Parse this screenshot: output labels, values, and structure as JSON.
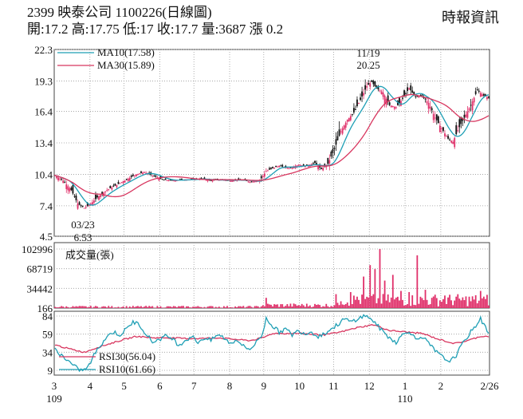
{
  "header": {
    "title": "2399  映泰公司 1100226(日線圖)",
    "quote": "開:17.2 高:17.75 低:17 收:17.7 量:3687 漲 0.2",
    "source": "時報資訊"
  },
  "colors": {
    "up": "#e0306a",
    "down": "#111111",
    "ma10": "#1f9fb5",
    "ma30": "#d8365f",
    "grid": "#9a9a9a"
  },
  "chart_data": [
    {
      "type": "candlestick",
      "x_axis_labels": [
        "3",
        "4",
        "5",
        "6",
        "7",
        "8",
        "9",
        "10",
        "11",
        "12",
        "1",
        "2",
        "2/26"
      ],
      "x_axis_year_labels": [
        "109",
        "110"
      ],
      "y_ticks": [
        22.3,
        19.3,
        16.4,
        13.4,
        10.4,
        7.4,
        4.5
      ],
      "ylim": [
        4.5,
        22.3
      ],
      "legend": [
        {
          "name": "MA10(17.58)",
          "color": "#1f9fb5"
        },
        {
          "name": "MA30(15.89)",
          "color": "#d8365f"
        }
      ],
      "annotations": [
        {
          "label_date": "11/19",
          "label_value": "20.25",
          "kind": "high"
        },
        {
          "label_date": "03/23",
          "label_value": "6.53",
          "kind": "low"
        }
      ],
      "close_keypoints": [
        [
          0,
          10.3
        ],
        [
          5,
          9.8
        ],
        [
          10,
          8.9
        ],
        [
          14,
          7.6
        ],
        [
          18,
          7.2
        ],
        [
          22,
          7.6
        ],
        [
          26,
          8.2
        ],
        [
          32,
          8.9
        ],
        [
          38,
          9.4
        ],
        [
          44,
          9.9
        ],
        [
          50,
          10.4
        ],
        [
          55,
          10.6
        ],
        [
          60,
          10.3
        ],
        [
          66,
          9.9
        ],
        [
          72,
          9.8
        ],
        [
          78,
          9.9
        ],
        [
          84,
          9.9
        ],
        [
          90,
          10.0
        ],
        [
          96,
          9.8
        ],
        [
          102,
          9.9
        ],
        [
          108,
          9.8
        ],
        [
          114,
          9.9
        ],
        [
          120,
          9.7
        ],
        [
          126,
          9.8
        ],
        [
          130,
          10.7
        ],
        [
          134,
          11.0
        ],
        [
          138,
          11.2
        ],
        [
          144,
          11.0
        ],
        [
          150,
          11.3
        ],
        [
          155,
          11.2
        ],
        [
          160,
          11.5
        ],
        [
          164,
          10.9
        ],
        [
          168,
          11.4
        ],
        [
          172,
          12.8
        ],
        [
          176,
          14.5
        ],
        [
          180,
          15.6
        ],
        [
          184,
          16.3
        ],
        [
          188,
          17.5
        ],
        [
          192,
          18.8
        ],
        [
          195,
          19.2
        ],
        [
          198,
          18.6
        ],
        [
          202,
          18.2
        ],
        [
          206,
          17.0
        ],
        [
          210,
          16.8
        ],
        [
          214,
          17.6
        ],
        [
          218,
          18.6
        ],
        [
          222,
          17.8
        ],
        [
          226,
          17.9
        ],
        [
          230,
          17.2
        ],
        [
          234,
          15.8
        ],
        [
          238,
          14.8
        ],
        [
          242,
          13.8
        ],
        [
          245,
          13.5
        ],
        [
          248,
          14.6
        ],
        [
          252,
          15.8
        ],
        [
          256,
          17.0
        ],
        [
          260,
          18.4
        ],
        [
          264,
          17.9
        ],
        [
          267,
          17.7
        ]
      ]
    },
    {
      "type": "bar",
      "title": "成交量(張)",
      "y_ticks": [
        102996,
        68719,
        34442,
        166
      ],
      "ylim": [
        166,
        102996
      ],
      "spikes": [
        [
          130,
          18000
        ],
        [
          176,
          12000
        ],
        [
          182,
          28000
        ],
        [
          186,
          20000
        ],
        [
          190,
          55000
        ],
        [
          194,
          75000
        ],
        [
          197,
          68000
        ],
        [
          200,
          102996
        ],
        [
          203,
          48000
        ],
        [
          208,
          58000
        ],
        [
          213,
          30000
        ],
        [
          218,
          28000
        ],
        [
          223,
          92000
        ],
        [
          228,
          32000
        ],
        [
          232,
          18000
        ],
        [
          240,
          22000
        ],
        [
          252,
          14000
        ],
        [
          262,
          30000
        ],
        [
          265,
          16000
        ]
      ]
    },
    {
      "type": "line",
      "y_ticks": [
        84,
        59,
        34,
        9
      ],
      "ylim": [
        9,
        84
      ],
      "legend": [
        {
          "name": "RSI30(56.04)",
          "color": "#d8365f"
        },
        {
          "name": "RSI10(61.66)",
          "color": "#1f9fb5"
        }
      ],
      "rsi10_keypoints": [
        [
          0,
          38
        ],
        [
          4,
          30
        ],
        [
          8,
          22
        ],
        [
          12,
          14
        ],
        [
          16,
          9
        ],
        [
          20,
          12
        ],
        [
          24,
          30
        ],
        [
          28,
          44
        ],
        [
          32,
          56
        ],
        [
          36,
          62
        ],
        [
          40,
          58
        ],
        [
          44,
          66
        ],
        [
          48,
          76
        ],
        [
          52,
          72
        ],
        [
          56,
          60
        ],
        [
          60,
          48
        ],
        [
          64,
          52
        ],
        [
          68,
          56
        ],
        [
          72,
          54
        ],
        [
          76,
          44
        ],
        [
          80,
          50
        ],
        [
          84,
          56
        ],
        [
          88,
          48
        ],
        [
          92,
          54
        ],
        [
          96,
          50
        ],
        [
          100,
          58
        ],
        [
          104,
          54
        ],
        [
          108,
          46
        ],
        [
          112,
          52
        ],
        [
          116,
          42
        ],
        [
          120,
          38
        ],
        [
          124,
          48
        ],
        [
          128,
          60
        ],
        [
          130,
          82
        ],
        [
          134,
          70
        ],
        [
          138,
          62
        ],
        [
          142,
          66
        ],
        [
          146,
          58
        ],
        [
          150,
          64
        ],
        [
          154,
          60
        ],
        [
          158,
          62
        ],
        [
          162,
          56
        ],
        [
          166,
          60
        ],
        [
          170,
          66
        ],
        [
          174,
          72
        ],
        [
          178,
          80
        ],
        [
          182,
          76
        ],
        [
          186,
          80
        ],
        [
          190,
          84
        ],
        [
          194,
          82
        ],
        [
          198,
          72
        ],
        [
          202,
          62
        ],
        [
          206,
          54
        ],
        [
          210,
          48
        ],
        [
          214,
          58
        ],
        [
          218,
          64
        ],
        [
          222,
          52
        ],
        [
          226,
          56
        ],
        [
          230,
          46
        ],
        [
          234,
          36
        ],
        [
          238,
          28
        ],
        [
          242,
          22
        ],
        [
          246,
          26
        ],
        [
          250,
          42
        ],
        [
          254,
          56
        ],
        [
          258,
          68
        ],
        [
          262,
          80
        ],
        [
          265,
          68
        ],
        [
          267,
          62
        ]
      ],
      "rsi30_keypoints": [
        [
          0,
          44
        ],
        [
          10,
          38
        ],
        [
          18,
          34
        ],
        [
          28,
          42
        ],
        [
          40,
          50
        ],
        [
          50,
          56
        ],
        [
          60,
          54
        ],
        [
          70,
          54
        ],
        [
          80,
          53
        ],
        [
          90,
          53
        ],
        [
          100,
          54
        ],
        [
          110,
          52
        ],
        [
          120,
          50
        ],
        [
          128,
          54
        ],
        [
          134,
          60
        ],
        [
          150,
          60
        ],
        [
          166,
          58
        ],
        [
          176,
          62
        ],
        [
          186,
          68
        ],
        [
          196,
          72
        ],
        [
          206,
          64
        ],
        [
          216,
          62
        ],
        [
          226,
          60
        ],
        [
          236,
          52
        ],
        [
          246,
          46
        ],
        [
          254,
          50
        ],
        [
          262,
          56
        ],
        [
          267,
          56
        ]
      ]
    }
  ]
}
